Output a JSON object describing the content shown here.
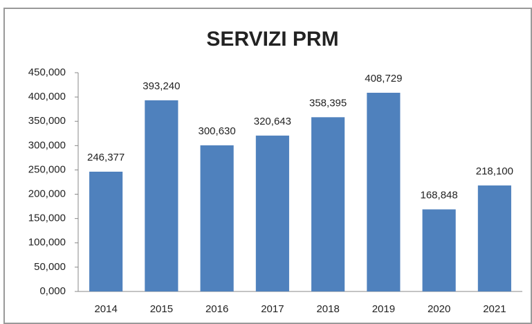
{
  "chart_data": {
    "type": "bar",
    "title": "SERVIZI PRM",
    "categories": [
      "2014",
      "2015",
      "2016",
      "2017",
      "2018",
      "2019",
      "2020",
      "2021"
    ],
    "values": [
      246.377,
      393.24,
      300.63,
      320.643,
      358.395,
      408.729,
      168.848,
      218.1
    ],
    "value_labels": [
      "246,377",
      "393,240",
      "300,630",
      "320,643",
      "358,395",
      "408,729",
      "168,848",
      "218,100"
    ],
    "color": "#4f81bd",
    "ylim": [
      0,
      450
    ],
    "yticks": [
      {
        "value": 0,
        "label": "0,000"
      },
      {
        "value": 50,
        "label": "50,000"
      },
      {
        "value": 100,
        "label": "100,000"
      },
      {
        "value": 150,
        "label": "150,000"
      },
      {
        "value": 200,
        "label": "200,000"
      },
      {
        "value": 250,
        "label": "250,000"
      },
      {
        "value": 300,
        "label": "300,000"
      },
      {
        "value": 350,
        "label": "350,000"
      },
      {
        "value": 400,
        "label": "400,000"
      },
      {
        "value": 450,
        "label": "450,000"
      }
    ],
    "grid": false
  }
}
